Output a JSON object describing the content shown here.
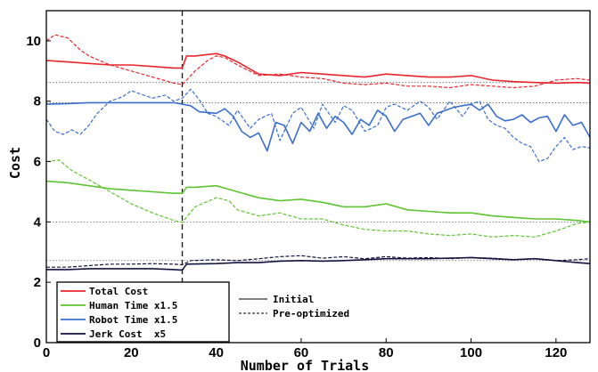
{
  "chart_data": {
    "type": "line",
    "xlabel": "Number of Trials",
    "ylabel": "Cost",
    "xlim": [
      0,
      128
    ],
    "ylim": [
      0,
      11
    ],
    "xticks": [
      0,
      20,
      40,
      60,
      80,
      100,
      120
    ],
    "yticks": [
      0,
      2,
      4,
      6,
      8,
      10
    ],
    "vline_x": 32,
    "reference_lines": [
      2.72,
      4.0,
      7.95,
      8.62
    ],
    "legend_placement": "bottom-left",
    "style_legend": [
      {
        "label": "Initial",
        "dash": "solid"
      },
      {
        "label": "Pre-optimized",
        "dash": "dashed"
      }
    ],
    "series": [
      {
        "name": "Total Cost",
        "color": "#e8262b",
        "initial": {
          "x": [
            0,
            5,
            10,
            15,
            20,
            25,
            30,
            32,
            33,
            35,
            40,
            42,
            45,
            50,
            55,
            60,
            65,
            70,
            75,
            80,
            85,
            90,
            95,
            100,
            105,
            110,
            115,
            120,
            125,
            128
          ],
          "y": [
            9.35,
            9.3,
            9.25,
            9.2,
            9.2,
            9.15,
            9.1,
            9.1,
            9.5,
            9.5,
            9.58,
            9.5,
            9.3,
            8.9,
            8.85,
            8.95,
            8.9,
            8.85,
            8.8,
            8.9,
            8.85,
            8.8,
            8.8,
            8.85,
            8.7,
            8.65,
            8.62,
            8.6,
            8.62,
            8.6
          ]
        },
        "preoptimized": {
          "x": [
            0,
            2,
            5,
            8,
            10,
            15,
            20,
            25,
            30,
            32,
            35,
            38,
            40,
            42,
            45,
            50,
            55,
            60,
            65,
            70,
            75,
            80,
            85,
            90,
            95,
            100,
            105,
            110,
            115,
            120,
            125,
            128
          ],
          "y": [
            10.0,
            10.2,
            10.1,
            9.7,
            9.5,
            9.2,
            9.0,
            8.8,
            8.6,
            8.55,
            9.0,
            9.35,
            9.5,
            9.45,
            9.2,
            8.85,
            8.9,
            8.8,
            8.75,
            8.6,
            8.55,
            8.6,
            8.5,
            8.5,
            8.45,
            8.55,
            8.5,
            8.45,
            8.5,
            8.7,
            8.75,
            8.7
          ]
        }
      },
      {
        "name": "Human Time x1.5",
        "color": "#5ec431",
        "initial": {
          "x": [
            0,
            5,
            10,
            15,
            20,
            25,
            30,
            32,
            33,
            35,
            40,
            45,
            50,
            55,
            60,
            65,
            70,
            75,
            80,
            85,
            90,
            95,
            100,
            105,
            110,
            115,
            120,
            125,
            128
          ],
          "y": [
            5.35,
            5.3,
            5.2,
            5.1,
            5.05,
            5.0,
            4.95,
            4.95,
            5.15,
            5.15,
            5.2,
            5.0,
            4.8,
            4.7,
            4.75,
            4.65,
            4.5,
            4.5,
            4.6,
            4.4,
            4.35,
            4.3,
            4.3,
            4.2,
            4.15,
            4.1,
            4.1,
            4.05,
            4.0
          ]
        },
        "preoptimized": {
          "x": [
            0,
            3,
            6,
            10,
            15,
            20,
            25,
            30,
            32,
            35,
            40,
            43,
            45,
            50,
            55,
            60,
            65,
            70,
            75,
            80,
            85,
            90,
            95,
            100,
            105,
            110,
            115,
            120,
            125,
            128
          ],
          "y": [
            6.0,
            6.05,
            5.7,
            5.4,
            5.0,
            4.6,
            4.3,
            4.05,
            3.98,
            4.5,
            4.8,
            4.7,
            4.4,
            4.2,
            4.3,
            4.1,
            4.1,
            3.9,
            3.75,
            3.7,
            3.7,
            3.6,
            3.55,
            3.6,
            3.5,
            3.55,
            3.5,
            3.7,
            3.95,
            4.0
          ]
        }
      },
      {
        "name": "Robot Time x1.5",
        "color": "#3a6fd1",
        "initial": {
          "x": [
            0,
            5,
            10,
            15,
            20,
            25,
            30,
            32,
            34,
            36,
            40,
            42,
            44,
            46,
            48,
            50,
            52,
            54,
            56,
            58,
            60,
            62,
            64,
            66,
            68,
            70,
            72,
            74,
            76,
            78,
            80,
            82,
            84,
            86,
            88,
            90,
            92,
            94,
            96,
            98,
            100,
            102,
            104,
            106,
            108,
            110,
            112,
            114,
            116,
            118,
            120,
            122,
            124,
            126,
            128
          ],
          "y": [
            7.9,
            7.92,
            7.95,
            7.95,
            7.95,
            7.95,
            7.95,
            7.9,
            7.85,
            7.65,
            7.6,
            7.75,
            7.5,
            7.0,
            6.8,
            6.95,
            6.35,
            7.3,
            7.2,
            6.6,
            7.3,
            7.0,
            7.6,
            7.1,
            7.5,
            7.3,
            6.9,
            7.4,
            7.2,
            7.7,
            7.5,
            7.0,
            7.4,
            7.5,
            7.6,
            7.2,
            7.6,
            7.7,
            7.8,
            7.85,
            7.9,
            7.7,
            7.9,
            7.5,
            7.35,
            7.4,
            7.55,
            7.3,
            7.45,
            7.5,
            7.0,
            7.55,
            7.2,
            7.3,
            6.8
          ]
        },
        "preoptimized": {
          "x": [
            0,
            2,
            4,
            6,
            8,
            10,
            12,
            15,
            18,
            20,
            22,
            25,
            28,
            30,
            32,
            34,
            36,
            38,
            40,
            43,
            45,
            48,
            50,
            53,
            55,
            58,
            60,
            63,
            65,
            68,
            70,
            72,
            75,
            78,
            80,
            82,
            85,
            88,
            90,
            92,
            95,
            98,
            100,
            102,
            104,
            106,
            108,
            110,
            112,
            114,
            116,
            118,
            120,
            122,
            124,
            126,
            128
          ],
          "y": [
            7.4,
            7.0,
            6.9,
            7.05,
            6.9,
            7.2,
            7.6,
            8.0,
            8.15,
            8.35,
            8.25,
            8.1,
            8.2,
            8.0,
            8.1,
            8.4,
            8.05,
            7.6,
            7.5,
            7.2,
            7.7,
            7.1,
            7.4,
            7.6,
            6.7,
            7.6,
            7.8,
            7.1,
            7.9,
            7.3,
            7.85,
            7.7,
            7.0,
            7.2,
            7.8,
            7.9,
            7.7,
            8.0,
            7.8,
            7.4,
            8.0,
            7.5,
            7.9,
            8.0,
            7.4,
            7.2,
            7.1,
            6.8,
            6.6,
            6.5,
            6.0,
            6.1,
            6.5,
            6.8,
            6.4,
            6.5,
            6.45
          ]
        }
      },
      {
        "name": "Jerk Cost  x5",
        "color": "#13133f",
        "initial": {
          "x": [
            0,
            5,
            10,
            15,
            20,
            25,
            30,
            32,
            33,
            40,
            45,
            50,
            55,
            60,
            65,
            70,
            75,
            80,
            85,
            90,
            95,
            100,
            105,
            110,
            115,
            120,
            125,
            128
          ],
          "y": [
            2.42,
            2.42,
            2.45,
            2.45,
            2.45,
            2.45,
            2.42,
            2.4,
            2.6,
            2.62,
            2.65,
            2.65,
            2.7,
            2.72,
            2.7,
            2.72,
            2.75,
            2.78,
            2.78,
            2.78,
            2.8,
            2.82,
            2.78,
            2.75,
            2.78,
            2.72,
            2.65,
            2.62
          ]
        },
        "preoptimized": {
          "x": [
            0,
            5,
            10,
            15,
            20,
            25,
            30,
            32,
            34,
            40,
            45,
            50,
            55,
            60,
            65,
            70,
            75,
            80,
            85,
            90,
            95,
            100,
            105,
            110,
            115,
            120,
            125,
            128
          ],
          "y": [
            2.5,
            2.5,
            2.55,
            2.6,
            2.6,
            2.62,
            2.6,
            2.58,
            2.72,
            2.75,
            2.72,
            2.78,
            2.85,
            2.88,
            2.8,
            2.85,
            2.78,
            2.85,
            2.8,
            2.82,
            2.78,
            2.82,
            2.8,
            2.75,
            2.78,
            2.72,
            2.75,
            2.78
          ]
        }
      }
    ]
  }
}
